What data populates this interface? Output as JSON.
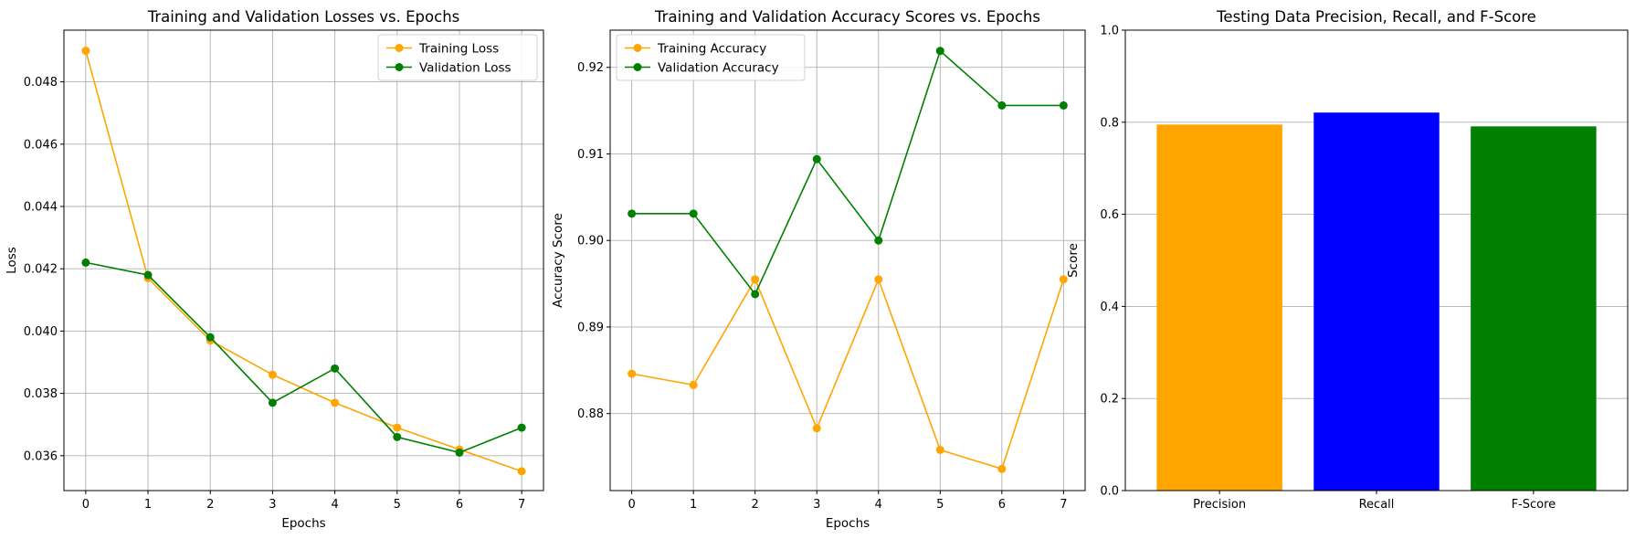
{
  "chart_data": [
    {
      "type": "line",
      "title": "Training and Validation Losses vs. Epochs",
      "xlabel": "Epochs",
      "ylabel": "Loss",
      "x": [
        0,
        1,
        2,
        3,
        4,
        5,
        6,
        7
      ],
      "xticks": [
        0,
        1,
        2,
        3,
        4,
        5,
        6,
        7
      ],
      "xlim": [
        -0.35,
        7.35
      ],
      "yticks": [
        0.036,
        0.038,
        0.04,
        0.042,
        0.044,
        0.046,
        0.048
      ],
      "ytick_labels": [
        "0.036",
        "0.038",
        "0.040",
        "0.042",
        "0.044",
        "0.046",
        "0.048"
      ],
      "ylim": [
        0.03488,
        0.04966
      ],
      "grid": true,
      "legend": "upper right",
      "series": [
        {
          "name": "Training Loss",
          "color": "#ffa500",
          "marker": "circle",
          "values": [
            0.049,
            0.0417,
            0.0397,
            0.0386,
            0.0377,
            0.0369,
            0.0362,
            0.0355
          ]
        },
        {
          "name": "Validation Loss",
          "color": "#008000",
          "marker": "circle",
          "values": [
            0.0422,
            0.0418,
            0.0398,
            0.0377,
            0.0388,
            0.0366,
            0.0361,
            0.0369
          ]
        }
      ]
    },
    {
      "type": "line",
      "title": "Training and Validation Accuracy Scores vs. Epochs",
      "xlabel": "Epochs",
      "ylabel": "Accuracy Score",
      "x": [
        0,
        1,
        2,
        3,
        4,
        5,
        6,
        7
      ],
      "xticks": [
        0,
        1,
        2,
        3,
        4,
        5,
        6,
        7
      ],
      "xlim": [
        -0.35,
        7.35
      ],
      "yticks": [
        0.88,
        0.89,
        0.9,
        0.91,
        0.92
      ],
      "ytick_labels": [
        "0.88",
        "0.89",
        "0.90",
        "0.91",
        "0.92"
      ],
      "ylim": [
        0.8711,
        0.9243
      ],
      "grid": true,
      "legend": "upper left",
      "series": [
        {
          "name": "Training Accuracy",
          "color": "#ffa500",
          "marker": "circle",
          "values": [
            0.8846,
            0.8833,
            0.8955,
            0.8783,
            0.8955,
            0.8758,
            0.8736,
            0.8955
          ]
        },
        {
          "name": "Validation Accuracy",
          "color": "#008000",
          "marker": "circle",
          "values": [
            0.9031,
            0.9031,
            0.8938,
            0.9094,
            0.9,
            0.9219,
            0.9156,
            0.9156
          ]
        }
      ]
    },
    {
      "type": "bar",
      "title": "Testing Data Precision, Recall, and F-Score",
      "xlabel": "",
      "ylabel": "Score",
      "categories": [
        "Precision",
        "Recall",
        "F-Score"
      ],
      "values": [
        0.795,
        0.821,
        0.791
      ],
      "colors": [
        "#ffa500",
        "#0000ff",
        "#008000"
      ],
      "yticks": [
        0.0,
        0.2,
        0.4,
        0.6,
        0.8,
        1.0
      ],
      "ytick_labels": [
        "0.0",
        "0.2",
        "0.4",
        "0.6",
        "0.8",
        "1.0"
      ],
      "ylim": [
        0,
        1
      ],
      "grid": "y"
    }
  ]
}
